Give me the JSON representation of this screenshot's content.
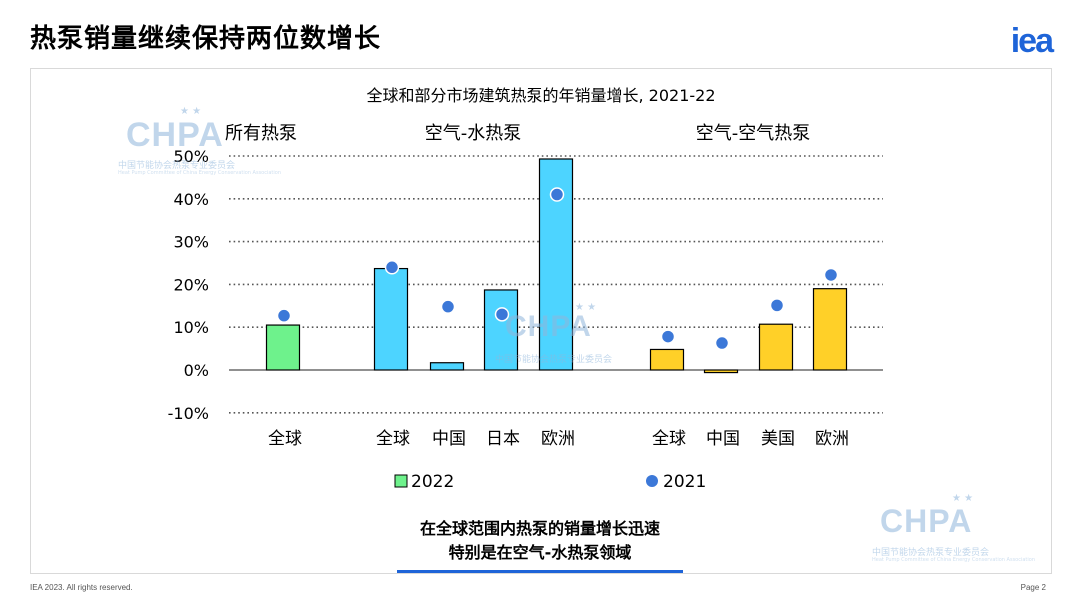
{
  "page": {
    "title": "热泵销量继续保持两位数增长",
    "logo": "iea",
    "footer_left": "IEA 2023. All rights reserved.",
    "footer_right": "Page 2",
    "takeaway_line1": "在全球范围内热泵的销量增长迅速",
    "takeaway_line2": "特别是在空气-水热泵领域",
    "watermark": {
      "brand": "CHPA",
      "stars": "★ ★",
      "sub": "中国节能协会热泵专业委员会",
      "en": "Heat Pump Committee of China Energy Conservation Association"
    }
  },
  "chart_data": {
    "type": "bar",
    "title": "全球和部分市场建筑热泵的年销量增长, 2021-22",
    "groups": [
      {
        "label": "所有热泵",
        "categories": [
          "全球"
        ]
      },
      {
        "label": "空气-水热泵",
        "categories": [
          "全球",
          "中国",
          "日本",
          "欧洲"
        ]
      },
      {
        "label": "空气-空气热泵",
        "categories": [
          "全球",
          "中国",
          "美国",
          "欧洲"
        ]
      }
    ],
    "categories": [
      "全球",
      "全球",
      "中国",
      "日本",
      "欧洲",
      "全球",
      "中国",
      "美国",
      "欧洲"
    ],
    "series": [
      {
        "name": "2022",
        "kind": "bar",
        "values": [
          10.5,
          23.7,
          1.7,
          18.7,
          49.3,
          4.8,
          -0.6,
          10.7,
          19.0
        ]
      },
      {
        "name": "2021",
        "kind": "dot",
        "values": [
          12.7,
          24.0,
          14.8,
          13.0,
          41.0,
          7.8,
          6.3,
          15.1,
          22.2
        ]
      }
    ],
    "group_colors": [
      "#6ef28c",
      "#4dd4ff",
      "#ffd028"
    ],
    "dot_color": "#3c78d8",
    "yticks": [
      "-10%",
      "0%",
      "10%",
      "20%",
      "30%",
      "40%",
      "50%"
    ],
    "ytick_values": [
      -10,
      0,
      10,
      20,
      30,
      40,
      50
    ],
    "ylim": [
      -10,
      50
    ],
    "legend": [
      {
        "label": "2022",
        "color": "#6ef28c"
      },
      {
        "label": "2021",
        "color": "#3c78d8"
      }
    ]
  }
}
